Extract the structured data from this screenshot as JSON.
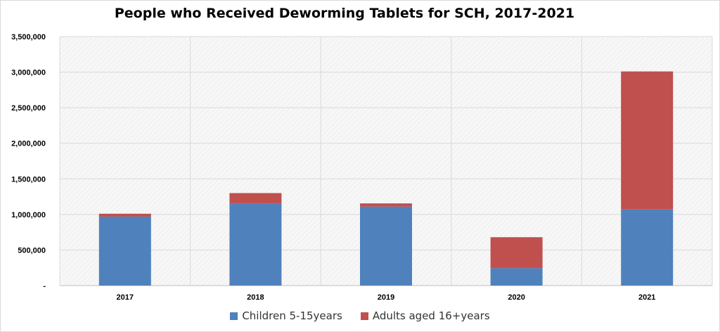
{
  "chart_data": {
    "type": "bar",
    "stacked": true,
    "title": "People who Received Deworming Tablets for SCH, 2017-2021",
    "categories": [
      "2017",
      "2018",
      "2019",
      "2020",
      "2021"
    ],
    "series": [
      {
        "name": "Children 5-15years",
        "color": "#4f81bd",
        "values": [
          970000,
          1150000,
          1110000,
          245000,
          1070000
        ]
      },
      {
        "name": "Adults aged 16+years",
        "color": "#c0504d",
        "values": [
          40000,
          150000,
          45000,
          435000,
          1940000
        ]
      }
    ],
    "ylim": [
      0,
      3500000
    ],
    "yticks": [
      "-",
      "500,000",
      "1,000,000",
      "1,500,000",
      "2,000,000",
      "2,500,000",
      "3,000,000",
      "3,500,000"
    ],
    "grid": true,
    "legend_position": "bottom"
  }
}
